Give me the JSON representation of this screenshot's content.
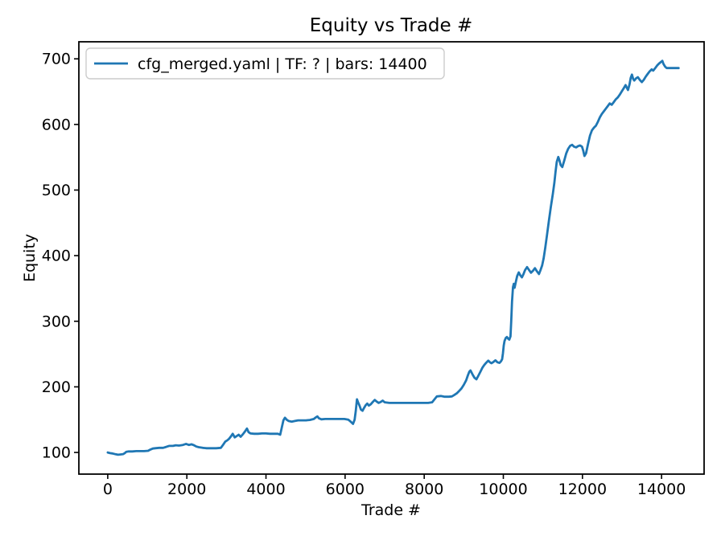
{
  "chart_data": {
    "type": "line",
    "title": "Equity vs Trade #",
    "xlabel": "Trade #",
    "ylabel": "Equity",
    "legend": [
      "cfg_merged.yaml | TF: ? | bars: 14400"
    ],
    "legend_position": "upper left",
    "grid": false,
    "line_color": "#1f77b4",
    "xlim": [
      -730,
      15075
    ],
    "ylim": [
      67,
      726
    ],
    "xticks": [
      0,
      2000,
      4000,
      6000,
      8000,
      10000,
      12000,
      14000
    ],
    "yticks": [
      100,
      200,
      300,
      400,
      500,
      600,
      700
    ],
    "series": [
      {
        "name": "cfg_merged.yaml | TF: ? | bars: 14400",
        "points": [
          [
            0,
            100
          ],
          [
            60,
            99
          ],
          [
            120,
            98.5
          ],
          [
            200,
            97.2
          ],
          [
            260,
            96.5
          ],
          [
            330,
            97
          ],
          [
            390,
            97.5
          ],
          [
            430,
            99
          ],
          [
            470,
            101
          ],
          [
            530,
            101.5
          ],
          [
            620,
            101.5
          ],
          [
            720,
            102
          ],
          [
            820,
            102
          ],
          [
            920,
            102
          ],
          [
            1020,
            102.5
          ],
          [
            1080,
            104.5
          ],
          [
            1140,
            106
          ],
          [
            1200,
            106.5
          ],
          [
            1300,
            107
          ],
          [
            1400,
            107
          ],
          [
            1480,
            108.5
          ],
          [
            1550,
            110
          ],
          [
            1650,
            110
          ],
          [
            1720,
            111
          ],
          [
            1800,
            110.5
          ],
          [
            1900,
            111.5
          ],
          [
            1980,
            113
          ],
          [
            2050,
            111.5
          ],
          [
            2120,
            112.5
          ],
          [
            2180,
            111
          ],
          [
            2240,
            109
          ],
          [
            2300,
            108
          ],
          [
            2400,
            107
          ],
          [
            2500,
            106.5
          ],
          [
            2620,
            106.5
          ],
          [
            2740,
            106.5
          ],
          [
            2860,
            107
          ],
          [
            2920,
            112
          ],
          [
            2970,
            116.5
          ],
          [
            3020,
            118.5
          ],
          [
            3070,
            121
          ],
          [
            3120,
            125
          ],
          [
            3160,
            128.5
          ],
          [
            3210,
            123
          ],
          [
            3260,
            125
          ],
          [
            3310,
            127
          ],
          [
            3360,
            124
          ],
          [
            3420,
            128
          ],
          [
            3470,
            132
          ],
          [
            3520,
            136.5
          ],
          [
            3560,
            131
          ],
          [
            3610,
            129
          ],
          [
            3700,
            128.5
          ],
          [
            3800,
            128.5
          ],
          [
            3900,
            129
          ],
          [
            4000,
            129
          ],
          [
            4100,
            128.5
          ],
          [
            4200,
            128.5
          ],
          [
            4300,
            128.5
          ],
          [
            4360,
            127
          ],
          [
            4400,
            138
          ],
          [
            4440,
            149
          ],
          [
            4480,
            153
          ],
          [
            4520,
            150
          ],
          [
            4570,
            148
          ],
          [
            4650,
            147
          ],
          [
            4730,
            148
          ],
          [
            4810,
            149
          ],
          [
            4910,
            149
          ],
          [
            5010,
            149
          ],
          [
            5110,
            149.5
          ],
          [
            5210,
            151
          ],
          [
            5260,
            153.5
          ],
          [
            5300,
            155
          ],
          [
            5340,
            152
          ],
          [
            5400,
            150.5
          ],
          [
            5500,
            151
          ],
          [
            5620,
            151
          ],
          [
            5740,
            151
          ],
          [
            5860,
            151
          ],
          [
            5980,
            151
          ],
          [
            6080,
            150
          ],
          [
            6150,
            146.5
          ],
          [
            6200,
            143.5
          ],
          [
            6240,
            150
          ],
          [
            6270,
            163
          ],
          [
            6300,
            181
          ],
          [
            6330,
            176
          ],
          [
            6360,
            172
          ],
          [
            6400,
            165.5
          ],
          [
            6440,
            163.5
          ],
          [
            6480,
            168
          ],
          [
            6520,
            172
          ],
          [
            6560,
            174.5
          ],
          [
            6600,
            171.5
          ],
          [
            6650,
            173.5
          ],
          [
            6700,
            177
          ],
          [
            6750,
            180
          ],
          [
            6800,
            177.5
          ],
          [
            6850,
            175.5
          ],
          [
            6900,
            177
          ],
          [
            6950,
            179
          ],
          [
            7000,
            176.5
          ],
          [
            7120,
            175.5
          ],
          [
            7260,
            175.5
          ],
          [
            7400,
            175.5
          ],
          [
            7540,
            175.5
          ],
          [
            7680,
            175.5
          ],
          [
            7820,
            175.5
          ],
          [
            7960,
            175.5
          ],
          [
            8100,
            175.5
          ],
          [
            8200,
            176.5
          ],
          [
            8260,
            181
          ],
          [
            8320,
            185.5
          ],
          [
            8420,
            186
          ],
          [
            8520,
            185
          ],
          [
            8620,
            185
          ],
          [
            8700,
            185.5
          ],
          [
            8760,
            187.5
          ],
          [
            8820,
            190
          ],
          [
            8880,
            193.5
          ],
          [
            8940,
            197.5
          ],
          [
            9000,
            203
          ],
          [
            9060,
            210
          ],
          [
            9100,
            217
          ],
          [
            9140,
            223
          ],
          [
            9170,
            225
          ],
          [
            9220,
            219
          ],
          [
            9270,
            214
          ],
          [
            9320,
            211.5
          ],
          [
            9370,
            217
          ],
          [
            9420,
            223
          ],
          [
            9470,
            229
          ],
          [
            9520,
            233.5
          ],
          [
            9570,
            237
          ],
          [
            9620,
            240
          ],
          [
            9660,
            237.5
          ],
          [
            9700,
            236
          ],
          [
            9750,
            238
          ],
          [
            9800,
            240.5
          ],
          [
            9850,
            237.5
          ],
          [
            9900,
            236.5
          ],
          [
            9940,
            239
          ],
          [
            9970,
            242
          ],
          [
            9990,
            251
          ],
          [
            10010,
            263
          ],
          [
            10030,
            270
          ],
          [
            10060,
            274.5
          ],
          [
            10090,
            276
          ],
          [
            10120,
            273.5
          ],
          [
            10150,
            272
          ],
          [
            10180,
            277
          ],
          [
            10200,
            300
          ],
          [
            10220,
            330
          ],
          [
            10245,
            352
          ],
          [
            10265,
            357
          ],
          [
            10285,
            351
          ],
          [
            10320,
            361
          ],
          [
            10350,
            369
          ],
          [
            10390,
            374.5
          ],
          [
            10430,
            370
          ],
          [
            10470,
            367
          ],
          [
            10510,
            372
          ],
          [
            10550,
            378
          ],
          [
            10600,
            382.5
          ],
          [
            10650,
            378
          ],
          [
            10700,
            374
          ],
          [
            10750,
            377
          ],
          [
            10800,
            381
          ],
          [
            10850,
            376
          ],
          [
            10900,
            372
          ],
          [
            10940,
            378
          ],
          [
            10980,
            385
          ],
          [
            11020,
            396
          ],
          [
            11060,
            412
          ],
          [
            11100,
            430
          ],
          [
            11150,
            452
          ],
          [
            11200,
            474
          ],
          [
            11250,
            494
          ],
          [
            11290,
            511
          ],
          [
            11320,
            528
          ],
          [
            11350,
            543
          ],
          [
            11390,
            550.5
          ],
          [
            11420,
            545
          ],
          [
            11450,
            538
          ],
          [
            11490,
            535
          ],
          [
            11540,
            545
          ],
          [
            11590,
            556
          ],
          [
            11640,
            563
          ],
          [
            11690,
            567.5
          ],
          [
            11740,
            569
          ],
          [
            11790,
            566
          ],
          [
            11840,
            565
          ],
          [
            11890,
            567
          ],
          [
            11940,
            568
          ],
          [
            11990,
            566
          ],
          [
            12020,
            560
          ],
          [
            12050,
            552
          ],
          [
            12090,
            556
          ],
          [
            12140,
            570
          ],
          [
            12190,
            583
          ],
          [
            12240,
            591
          ],
          [
            12290,
            595
          ],
          [
            12340,
            598
          ],
          [
            12390,
            604
          ],
          [
            12440,
            611
          ],
          [
            12490,
            616
          ],
          [
            12540,
            620
          ],
          [
            12590,
            624
          ],
          [
            12640,
            628
          ],
          [
            12690,
            632
          ],
          [
            12740,
            630
          ],
          [
            12790,
            634
          ],
          [
            12840,
            638
          ],
          [
            12890,
            641
          ],
          [
            12940,
            645
          ],
          [
            12990,
            650
          ],
          [
            13040,
            655
          ],
          [
            13090,
            660
          ],
          [
            13120,
            656
          ],
          [
            13150,
            652.5
          ],
          [
            13190,
            661
          ],
          [
            13220,
            671
          ],
          [
            13250,
            676
          ],
          [
            13280,
            669.5
          ],
          [
            13310,
            667
          ],
          [
            13350,
            670
          ],
          [
            13400,
            672
          ],
          [
            13450,
            668
          ],
          [
            13500,
            664.5
          ],
          [
            13550,
            668
          ],
          [
            13600,
            673
          ],
          [
            13650,
            677
          ],
          [
            13700,
            681
          ],
          [
            13750,
            684
          ],
          [
            13790,
            682
          ],
          [
            13840,
            686
          ],
          [
            13890,
            690
          ],
          [
            13940,
            693
          ],
          [
            13990,
            695.5
          ],
          [
            14020,
            697
          ],
          [
            14050,
            692
          ],
          [
            14090,
            688
          ],
          [
            14130,
            686
          ],
          [
            14220,
            686
          ],
          [
            14320,
            686
          ],
          [
            14430,
            686
          ]
        ]
      }
    ]
  }
}
